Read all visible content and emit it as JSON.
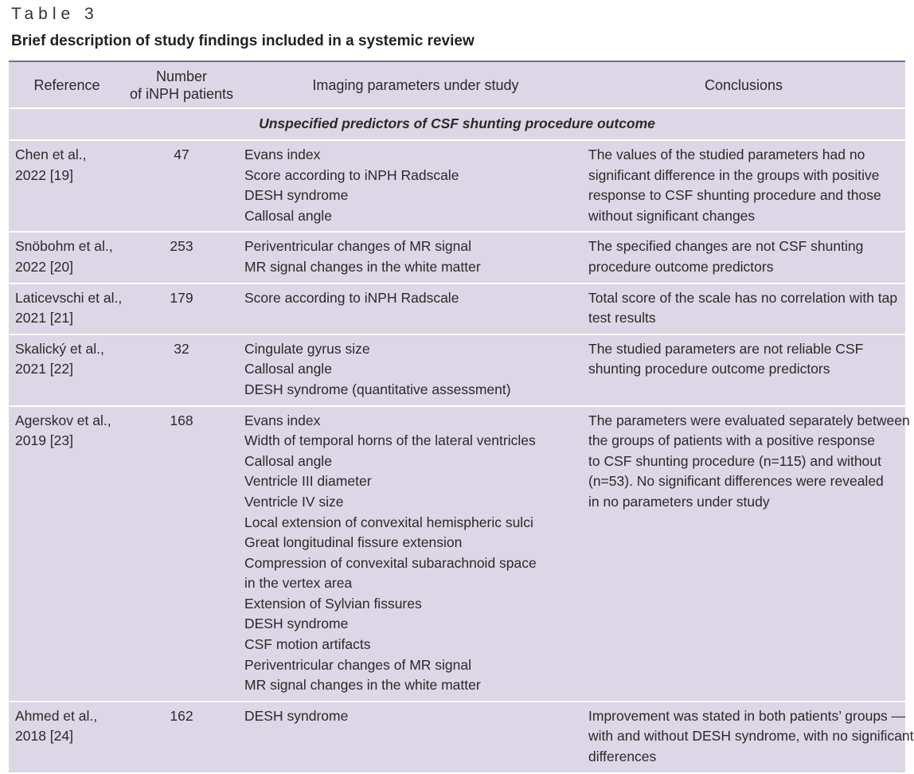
{
  "label": "Table 3",
  "caption": "Brief description of study findings included in a systemic review",
  "headers": {
    "reference": "Reference",
    "patients_line1": "Number",
    "patients_line2": "of iNPH patients",
    "imaging": "Imaging parameters under study",
    "conclusions": "Conclusions"
  },
  "section_title": "Unspecified predictors of CSF shunting procedure outcome",
  "rows": [
    {
      "reference": [
        "Chen et al.,",
        "2022 [19]"
      ],
      "patients": "47",
      "imaging": [
        "Evans index",
        "Score according to iNPH Radscale",
        "DESH syndrome",
        "Callosal angle"
      ],
      "conclusions": [
        "The values of the studied parameters had no",
        "significant difference in the groups with positive",
        "response to CSF shunting procedure and those",
        "without significant changes"
      ]
    },
    {
      "reference": [
        "Snöbohm et al.,",
        "2022 [20]"
      ],
      "patients": "253",
      "imaging": [
        "Periventricular changes of MR signal",
        "MR signal changes in the white matter"
      ],
      "conclusions": [
        "The specified changes are not CSF shunting",
        "procedure outcome predictors"
      ]
    },
    {
      "reference": [
        "Laticevschi et al.,",
        "2021 [21]"
      ],
      "patients": "179",
      "imaging": [
        "Score according to iNPH Radscale"
      ],
      "conclusions": [
        "Total score of the scale has no correlation with tap",
        "test results"
      ]
    },
    {
      "reference": [
        "Skalický et al.,",
        "2021 [22]"
      ],
      "patients": "32",
      "imaging": [
        "Cingulate gyrus size",
        "Callosal angle",
        "DESH syndrome (quantitative assessment)"
      ],
      "conclusions": [
        "The studied parameters are not reliable CSF",
        "shunting procedure outcome predictors"
      ]
    },
    {
      "reference": [
        "Agerskov et al.,",
        "2019 [23]"
      ],
      "patients": "168",
      "imaging": [
        "Evans index",
        "Width of temporal horns of the lateral ventricles",
        "Callosal angle",
        "Ventricle III diameter",
        "Ventricle IV size",
        "Local extension of convexital hemispheric sulci",
        "Great longitudinal fissure extension",
        "Compression of convexital subarachnoid space",
        "in the vertex area",
        "Extension of Sylvian fissures",
        "DESH syndrome",
        "CSF motion artifacts",
        "Periventricular changes of MR signal",
        "MR signal changes in the white matter"
      ],
      "conclusions": [
        "The parameters were evaluated separately between",
        "the groups of patients with a positive response",
        "to CSF shunting procedure (n=115) and without",
        "(n=53). No significant differences were revealed",
        "in no parameters under study"
      ]
    },
    {
      "reference": [
        "Ahmed et al.,",
        "2018 [24]"
      ],
      "patients": "162",
      "imaging": [
        "DESH syndrome"
      ],
      "conclusions": [
        "Improvement was stated in both patients’ groups —",
        "with and without DESH syndrome, with no significant",
        "differences"
      ]
    }
  ]
}
